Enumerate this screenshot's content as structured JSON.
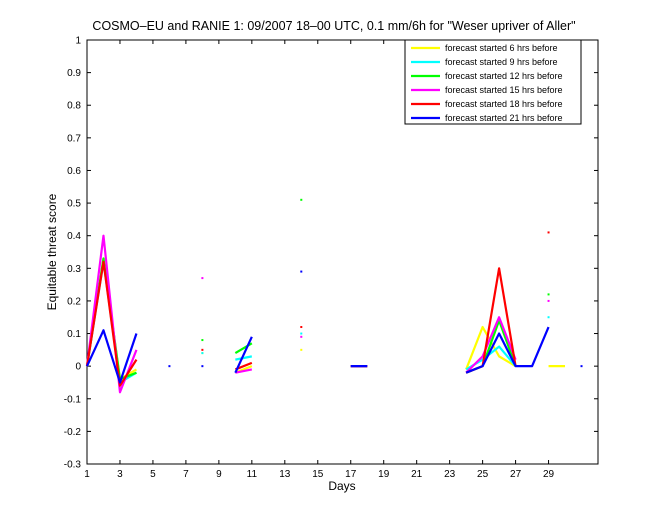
{
  "chart_data": {
    "type": "line",
    "title": "COSMO–EU and RANIE 1: 09/2007 18–00 UTC, 0.1 mm/6h for \"Weser upriver of Aller\"",
    "xlabel": "Days",
    "ylabel": "Equitable threat score",
    "xlim": [
      1,
      32
    ],
    "ylim": [
      -0.3,
      1
    ],
    "xticks": [
      1,
      3,
      5,
      7,
      9,
      11,
      13,
      15,
      17,
      19,
      21,
      23,
      25,
      27,
      29
    ],
    "yticks": [
      -0.3,
      -0.2,
      -0.1,
      0,
      0.1,
      0.2,
      0.3,
      0.4,
      0.5,
      0.6,
      0.7,
      0.8,
      0.9,
      1
    ],
    "grid": false,
    "legend_position": "top-right",
    "series": [
      {
        "name": "forecast started 6 hrs before",
        "color": "#ffff00",
        "points": [
          [
            1,
            0.0
          ],
          [
            2,
            0.33
          ],
          [
            3,
            -0.04
          ],
          [
            4,
            -0.01
          ],
          [
            8,
            0.04
          ],
          [
            10,
            -0.02
          ],
          [
            11,
            0.0
          ],
          [
            14,
            0.05
          ],
          [
            17,
            0.0
          ],
          [
            18,
            0.0
          ],
          [
            24,
            -0.01
          ],
          [
            25,
            0.12
          ],
          [
            26,
            0.03
          ],
          [
            27,
            0.0
          ],
          [
            29,
            0.0
          ],
          [
            30,
            0.0
          ]
        ]
      },
      {
        "name": "forecast started 9 hrs before",
        "color": "#00ffff",
        "points": [
          [
            1,
            0.0
          ],
          [
            2,
            0.32
          ],
          [
            3,
            -0.05
          ],
          [
            4,
            -0.02
          ],
          [
            8,
            0.04
          ],
          [
            10,
            0.02
          ],
          [
            11,
            0.03
          ],
          [
            14,
            0.1
          ],
          [
            17,
            0.0
          ],
          [
            18,
            0.0
          ],
          [
            24,
            -0.01
          ],
          [
            25,
            0.02
          ],
          [
            26,
            0.06
          ],
          [
            27,
            0.0
          ],
          [
            29,
            0.15
          ]
        ]
      },
      {
        "name": "forecast started 12 hrs before",
        "color": "#00ff00",
        "points": [
          [
            1,
            0.0
          ],
          [
            2,
            0.33
          ],
          [
            3,
            -0.04
          ],
          [
            4,
            -0.02
          ],
          [
            8,
            0.08
          ],
          [
            10,
            0.04
          ],
          [
            11,
            0.07
          ],
          [
            14,
            0.51
          ],
          [
            17,
            0.0
          ],
          [
            18,
            0.0
          ],
          [
            24,
            -0.02
          ],
          [
            25,
            0.0
          ],
          [
            26,
            0.14
          ],
          [
            27,
            0.0
          ],
          [
            29,
            0.22
          ]
        ]
      },
      {
        "name": "forecast started 15 hrs before",
        "color": "#ff00ff",
        "points": [
          [
            1,
            0.0
          ],
          [
            2,
            0.4
          ],
          [
            3,
            -0.08
          ],
          [
            4,
            0.05
          ],
          [
            8,
            0.27
          ],
          [
            10,
            -0.02
          ],
          [
            11,
            -0.01
          ],
          [
            14,
            0.09
          ],
          [
            17,
            0.0
          ],
          [
            18,
            0.0
          ],
          [
            24,
            -0.02
          ],
          [
            25,
            0.03
          ],
          [
            26,
            0.15
          ],
          [
            27,
            0.02
          ],
          [
            29,
            0.2
          ]
        ]
      },
      {
        "name": "forecast started 18 hrs before",
        "color": "#ff0000",
        "points": [
          [
            1,
            0.0
          ],
          [
            2,
            0.32
          ],
          [
            3,
            -0.06
          ],
          [
            4,
            0.02
          ],
          [
            8,
            0.05
          ],
          [
            10,
            -0.01
          ],
          [
            11,
            0.01
          ],
          [
            14,
            0.12
          ],
          [
            17,
            0.0
          ],
          [
            18,
            0.0
          ],
          [
            24,
            -0.02
          ],
          [
            25,
            0.0
          ],
          [
            26,
            0.3
          ],
          [
            27,
            0.0
          ],
          [
            29,
            0.41
          ]
        ]
      },
      {
        "name": "forecast started 21 hrs before",
        "color": "#0000ff",
        "points": [
          [
            1,
            0.0
          ],
          [
            2,
            0.11
          ],
          [
            3,
            -0.05
          ],
          [
            4,
            0.1
          ],
          [
            6,
            0.0
          ],
          [
            8,
            0.0
          ],
          [
            10,
            -0.02
          ],
          [
            11,
            0.09
          ],
          [
            14,
            0.29
          ],
          [
            17,
            0.0
          ],
          [
            18,
            0.0
          ],
          [
            24,
            -0.02
          ],
          [
            25,
            0.0
          ],
          [
            26,
            0.1
          ],
          [
            27,
            0.0
          ],
          [
            28,
            0.0
          ],
          [
            29,
            0.12
          ],
          [
            31,
            0.0
          ]
        ]
      }
    ]
  }
}
